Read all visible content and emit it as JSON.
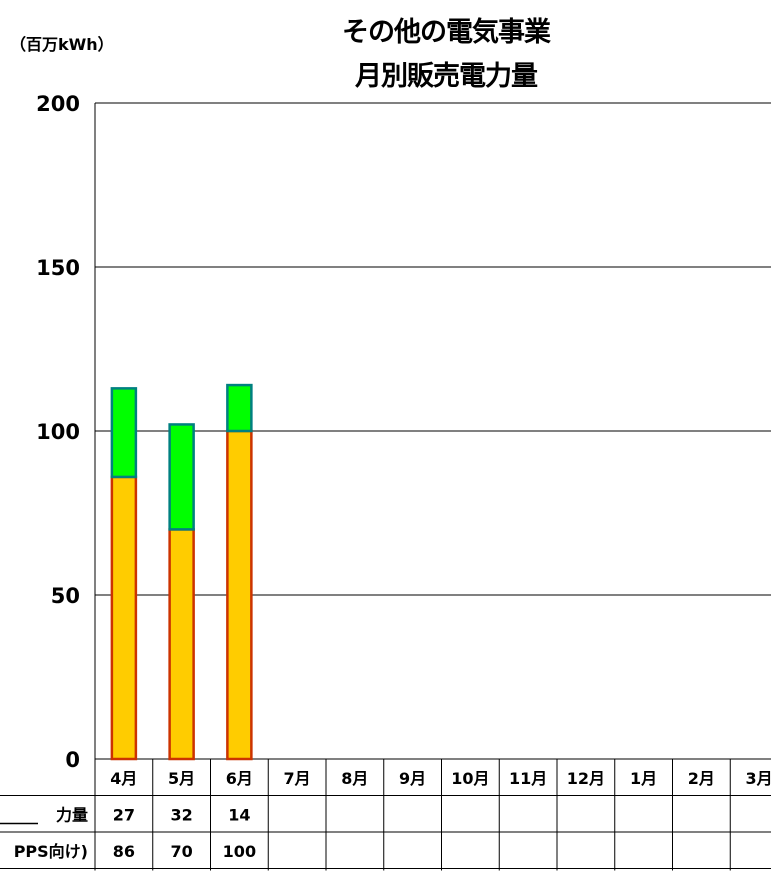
{
  "chart_data": {
    "type": "bar",
    "stacked": true,
    "title": [
      "その他の電気事業",
      "月別販売電力量"
    ],
    "unit_label": "（百万kWh）",
    "ylim": [
      0,
      200
    ],
    "yticks": [
      0,
      50,
      100,
      150,
      200
    ],
    "grid": true,
    "categories": [
      "4月",
      "5月",
      "6月",
      "7月",
      "8月",
      "9月",
      "10月",
      "11月",
      "12月",
      "1月",
      "2月",
      "3月"
    ],
    "series": [
      {
        "name": "PPS向け",
        "table_label": "PPS向け)",
        "color": "#FFCC00",
        "edge": "#CC3300",
        "values": [
          86,
          70,
          100,
          null,
          null,
          null,
          null,
          null,
          null,
          null,
          null,
          null
        ]
      },
      {
        "name": "力量",
        "table_label": "力量",
        "color": "#00FF00",
        "edge": "#008080",
        "values": [
          27,
          32,
          14,
          null,
          null,
          null,
          null,
          null,
          null,
          null,
          null,
          null
        ]
      }
    ],
    "table_rows": [
      {
        "label": "力量",
        "values": [
          "27",
          "32",
          "14",
          "",
          "",
          "",
          "",
          "",
          "",
          "",
          "",
          ""
        ]
      },
      {
        "label": "PPS向け)",
        "values": [
          "86",
          "70",
          "100",
          "",
          "",
          "",
          "",
          "",
          "",
          "",
          "",
          ""
        ]
      }
    ]
  }
}
